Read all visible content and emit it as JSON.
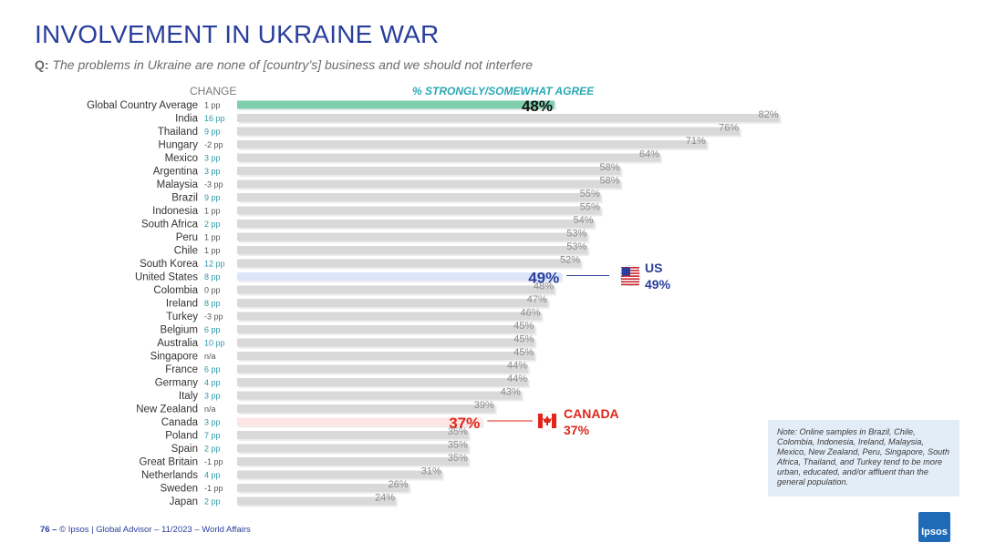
{
  "title": "INVOLVEMENT IN UKRAINE WAR",
  "question": {
    "prefix": "Q:",
    "text": "The problems in Ukraine are none of [country’s] business and we should not interfere"
  },
  "headers": {
    "change": "CHANGE",
    "agree": "% STRONGLY/SOMEWHAT AGREE"
  },
  "colors": {
    "bar_default": "#d9d9d9",
    "bar_global": "#7fcfae",
    "bar_us": "#dce6fb",
    "bar_canada": "#fde5e3",
    "label_default": "#8a8a8a",
    "change_positive": "#2b9aa8",
    "change_other": "#555555",
    "us_color": "#2a3f9c",
    "canada_color": "#e0261b"
  },
  "chart_data": {
    "type": "bar",
    "orientation": "horizontal",
    "title": "% STRONGLY/SOMEWHAT AGREE",
    "xlim": [
      0,
      100
    ],
    "categories": [
      "Global Country Average",
      "India",
      "Thailand",
      "Hungary",
      "Mexico",
      "Argentina",
      "Malaysia",
      "Brazil",
      "Indonesia",
      "South Africa",
      "Peru",
      "Chile",
      "South Korea",
      "United States",
      "Colombia",
      "Ireland",
      "Turkey",
      "Belgium",
      "Australia",
      "Singapore",
      "France",
      "Germany",
      "Italy",
      "New Zealand",
      "Canada",
      "Poland",
      "Spain",
      "Great Britain",
      "Netherlands",
      "Sweden",
      "Japan"
    ],
    "values": [
      48,
      82,
      76,
      71,
      64,
      58,
      58,
      55,
      55,
      54,
      53,
      53,
      52,
      49,
      48,
      47,
      46,
      45,
      45,
      45,
      44,
      44,
      43,
      39,
      37,
      35,
      35,
      35,
      31,
      26,
      24
    ],
    "value_labels": [
      "48%",
      "82%",
      "76%",
      "71%",
      "64%",
      "58%",
      "58%",
      "55%",
      "55%",
      "54%",
      "53%",
      "53%",
      "52%",
      "49%",
      "48%",
      "47%",
      "46%",
      "45%",
      "45%",
      "45%",
      "44%",
      "44%",
      "43%",
      "39%",
      "37%",
      "35%",
      "35%",
      "35%",
      "31%",
      "26%",
      "24%"
    ],
    "change": [
      "1 pp",
      "16 pp",
      "9 pp",
      "-2 pp",
      "3 pp",
      "3 pp",
      "-3 pp",
      "9 pp",
      "1 pp",
      "2 pp",
      "1 pp",
      "1 pp",
      "12 pp",
      "8 pp",
      "0 pp",
      "8 pp",
      "-3 pp",
      "6 pp",
      "10 pp",
      "n/a",
      "6 pp",
      "4 pp",
      "3 pp",
      "n/a",
      "3 pp",
      "7 pp",
      "2 pp",
      "-1 pp",
      "4 pp",
      "-1 pp",
      "2 pp"
    ],
    "highlight": {
      "Global Country Average": "global",
      "United States": "us",
      "Canada": "canada"
    }
  },
  "callouts": {
    "us": {
      "name": "US",
      "value": "49%"
    },
    "canada": {
      "name": "CANADA",
      "value": "37%"
    }
  },
  "note": "Note: Online samples in Brazil, Chile, Colombia, Indonesia, Ireland, Malaysia, Mexico, New Zealand, Peru, Singapore, South Africa, Thailand, and Turkey tend to be more urban, educated, and/or affluent than the general population.",
  "footer": {
    "page": "76 –",
    "text": "© Ipsos | Global Advisor – 11/2023 – World Affairs"
  },
  "logo": "Ipsos"
}
